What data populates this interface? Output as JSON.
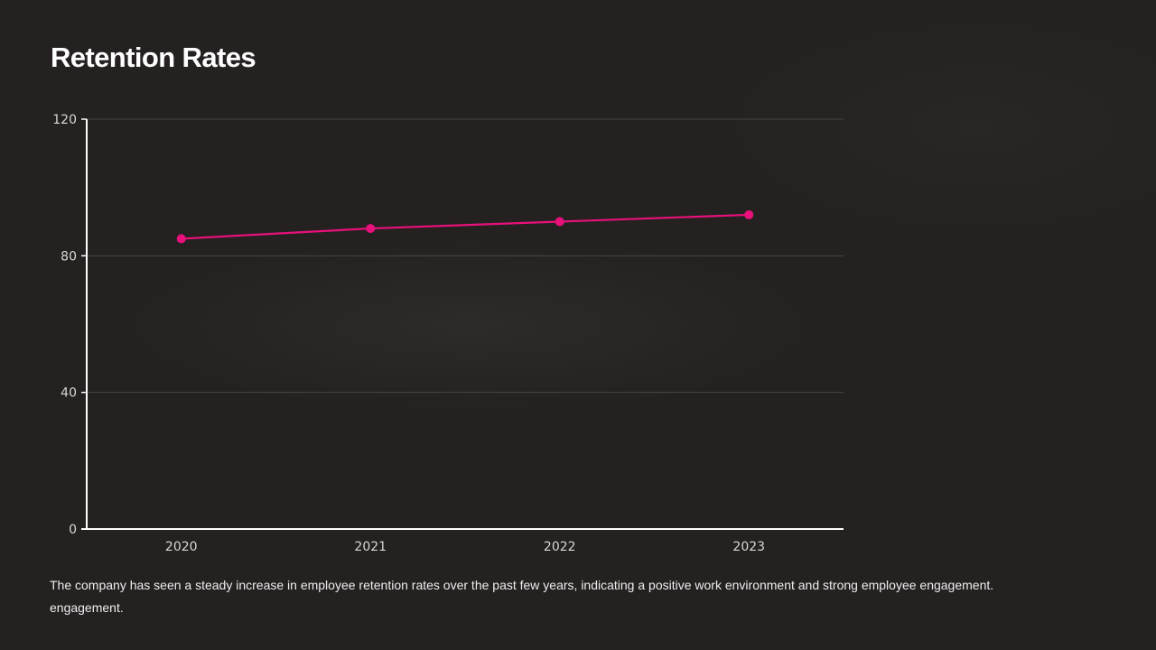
{
  "slide": {
    "title": "Retention Rates",
    "caption_lines": [
      "The company has seen a steady increase in employee retention rates over the past few years, indicating a positive work environment and strong employee engagement.",
      "engagement."
    ]
  },
  "colors": {
    "background": "#252121",
    "line": "#e8107a",
    "axis": "#ffffff",
    "grid": "#4a4545",
    "text": "#d9d6d6"
  },
  "chart_data": {
    "type": "line",
    "categories": [
      "2020",
      "2021",
      "2022",
      "2023"
    ],
    "series": [
      {
        "values": [
          85,
          88,
          90,
          92
        ]
      }
    ],
    "yticks": [
      0,
      40,
      80,
      120
    ],
    "ylim": [
      0,
      120
    ],
    "grid": true,
    "legend": "none"
  }
}
